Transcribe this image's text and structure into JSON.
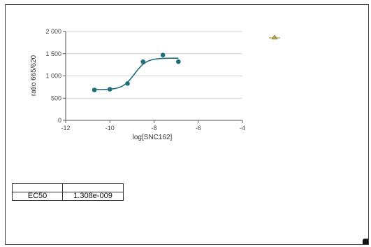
{
  "chart_data": {
    "type": "scatter",
    "title": "",
    "xlabel": "log[SNC162]",
    "ylabel": "ratio 665/620",
    "xlim": [
      -12,
      -4
    ],
    "ylim": [
      0,
      2000
    ],
    "x_ticks": [
      "-12",
      "-10",
      "-8",
      "-6",
      "-4"
    ],
    "y_ticks": [
      "0",
      "500",
      "1 000",
      "1 500",
      "2 000"
    ],
    "grid": "horizontal",
    "series": [
      {
        "color": "#1f6e7a",
        "marker": "circle",
        "points": [
          {
            "x": -10.7,
            "y": 685
          },
          {
            "x": -10.0,
            "y": 700
          },
          {
            "x": -9.2,
            "y": 830
          },
          {
            "x": -8.5,
            "y": 1320
          },
          {
            "x": -7.6,
            "y": 1470
          },
          {
            "x": -6.9,
            "y": 1320
          }
        ],
        "fit": {
          "bottom": 690,
          "top": 1400,
          "log_ec50": -8.884,
          "hill": 1.6,
          "x_range": [
            -10.8,
            -6.9
          ]
        }
      }
    ],
    "legend": {
      "placement": "top-right",
      "marker": "triangle",
      "color": "#b8a64a"
    }
  },
  "results_table": {
    "rows": [
      {
        "label": "",
        "value": ""
      },
      {
        "label": "EC50",
        "value": "1.308e-009"
      }
    ]
  }
}
